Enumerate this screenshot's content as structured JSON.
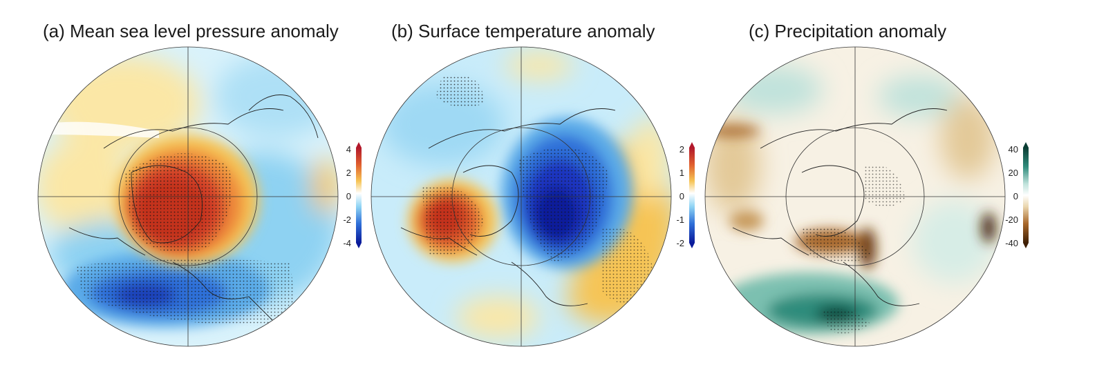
{
  "panels": [
    {
      "id": "a",
      "title": "(a) Mean sea level pressure anomaly",
      "colorbar": {
        "ticks": [
          "4",
          "2",
          "0",
          "-2",
          "-4"
        ],
        "scheme": "red-blue",
        "range": [
          -4,
          4
        ]
      }
    },
    {
      "id": "b",
      "title": "(b) Surface temperature anomaly",
      "colorbar": {
        "ticks": [
          "2",
          "1",
          "0",
          "-1",
          "-2"
        ],
        "scheme": "red-blue",
        "range": [
          -2,
          2
        ]
      }
    },
    {
      "id": "c",
      "title": "(c) Precipitation anomaly",
      "colorbar": {
        "ticks": [
          "40",
          "20",
          "0",
          "-20",
          "-40"
        ],
        "scheme": "teal-brown",
        "range": [
          -40,
          40
        ]
      }
    }
  ],
  "colors": {
    "deep_red": "#b2182b",
    "red": "#d6452a",
    "orange": "#f0a03c",
    "yellow": "#fbe59a",
    "white": "#ffffff",
    "light_blue": "#c4ecfa",
    "sky": "#6fc8f2",
    "blue": "#2a5fd0",
    "deep_blue": "#0a1a9a",
    "teal_dark": "#0b4a3e",
    "teal": "#2f8c7c",
    "teal_light": "#bfe2db",
    "tan": "#e3c998",
    "brown": "#9b5a1e",
    "brown_dark": "#4a2608"
  }
}
